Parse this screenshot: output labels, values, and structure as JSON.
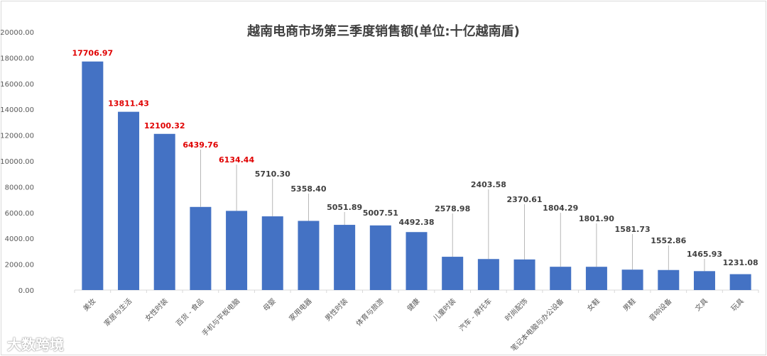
{
  "chart_data": {
    "type": "bar",
    "title": "越南电商市场第三季度销售额(单位:十亿越南盾)",
    "categories": [
      "美妆",
      "家居与生活",
      "女性时装",
      "百货 - 食品",
      "手机与平板电脑",
      "母婴",
      "家用电器",
      "男性时装",
      "体育与旅游",
      "健康",
      "儿童时装",
      "汽车 - 摩托车",
      "时尚配饰",
      "笔记本电脑与办公设备",
      "女鞋",
      "男鞋",
      "音响设备",
      "文具",
      "玩具"
    ],
    "values": [
      17706.97,
      13811.43,
      12100.32,
      6439.76,
      6134.44,
      5710.3,
      5358.4,
      5051.89,
      5007.51,
      4492.38,
      2578.98,
      2403.58,
      2370.61,
      1804.29,
      1801.9,
      1581.73,
      1552.86,
      1465.93,
      1231.08
    ],
    "data_labels": [
      "17706.97",
      "13811.43",
      "12100.32",
      "6439.76",
      "6134.44",
      "5710.30",
      "5358.40",
      "5051.89",
      "5007.51",
      "4492.38",
      "2578.98",
      "2403.58",
      "2370.61",
      "1804.29",
      "1801.90",
      "1581.73",
      "1552.86",
      "1465.93",
      "1231.08"
    ],
    "highlighted_count": 5,
    "ylim": [
      0,
      20000
    ],
    "yticks": [
      "0.00",
      "2000.00",
      "4000.00",
      "6000.00",
      "8000.00",
      "10000.00",
      "12000.00",
      "14000.00",
      "16000.00",
      "18000.00",
      "20000.00"
    ],
    "xlabel": "",
    "ylabel": "",
    "grid": false,
    "legend": "none",
    "colors": {
      "bar": "#4472C4",
      "highlight_label": "#E00000",
      "label": "#404040"
    }
  },
  "watermark": "大数跨境"
}
